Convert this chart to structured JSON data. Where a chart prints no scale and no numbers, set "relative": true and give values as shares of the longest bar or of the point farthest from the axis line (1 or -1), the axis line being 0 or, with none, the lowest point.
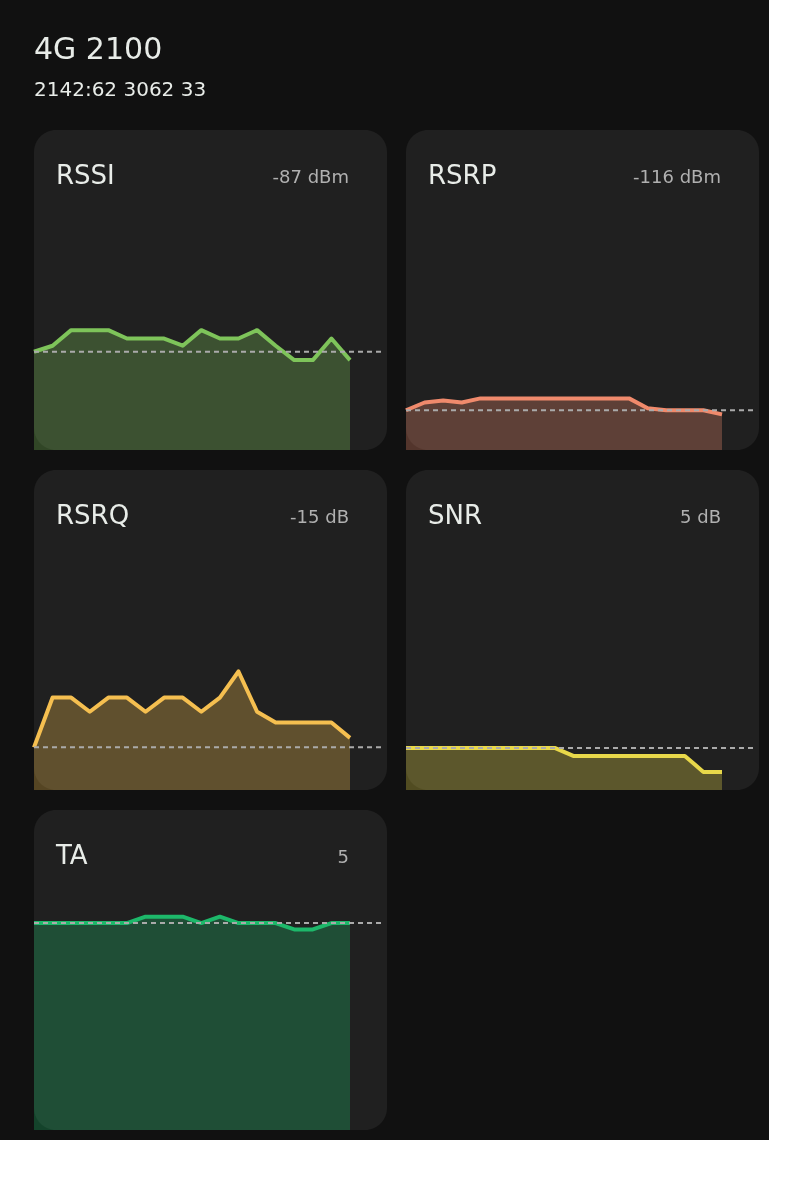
{
  "chart_data": [
    {
      "type": "other",
      "title": "4G 2100",
      "subtitle": "2142:62 3062 33"
    },
    {
      "type": "area",
      "title": "RSSI",
      "annotations": [
        "-87 dBm"
      ],
      "relative": true,
      "categories": [
        null,
        null,
        null,
        null,
        null,
        null,
        null,
        null,
        null,
        null,
        null,
        null,
        null,
        null,
        null,
        null,
        null,
        null
      ],
      "series": [
        {
          "color": "#7ec45a",
          "values": [
            0.82,
            0.87,
            1,
            1,
            1,
            0.93,
            0.93,
            0.93,
            0.87,
            1,
            0.93,
            0.93,
            1,
            0.87,
            0.75,
            0.75,
            0.93,
            0.75
          ]
        }
      ],
      "ref_lines": [
        {
          "axis": "y",
          "value": 0.82,
          "color": "#aaaaaa",
          "line_style": "dashed"
        }
      ]
    },
    {
      "type": "area",
      "title": "RSRP",
      "annotations": [
        "-116 dBm"
      ],
      "relative": true,
      "categories": [
        null,
        null,
        null,
        null,
        null,
        null,
        null,
        null,
        null,
        null,
        null,
        null,
        null,
        null,
        null,
        null,
        null,
        null
      ],
      "series": [
        {
          "color": "#f08a6c",
          "values": [
            0.77,
            0.92,
            0.96,
            0.92,
            1,
            1,
            1,
            1,
            1,
            1,
            1,
            1,
            1,
            0.81,
            0.77,
            0.77,
            0.77,
            0.69
          ]
        }
      ],
      "ref_lines": [
        {
          "axis": "y",
          "value": 0.77,
          "color": "#aaaaaa",
          "line_style": "dashed"
        }
      ]
    },
    {
      "type": "area",
      "title": "RSRQ",
      "annotations": [
        "-15 dB"
      ],
      "relative": true,
      "categories": [
        null,
        null,
        null,
        null,
        null,
        null,
        null,
        null,
        null,
        null,
        null,
        null,
        null,
        null,
        null,
        null,
        null,
        null
      ],
      "series": [
        {
          "color": "#f5bf50",
          "values": [
            0.36,
            0.78,
            0.78,
            0.66,
            0.78,
            0.78,
            0.66,
            0.78,
            0.78,
            0.66,
            0.78,
            1,
            0.66,
            0.57,
            0.57,
            0.57,
            0.57,
            0.44
          ]
        }
      ],
      "ref_lines": [
        {
          "axis": "y",
          "value": 0.36,
          "color": "#aaaaaa",
          "line_style": "dashed"
        }
      ]
    },
    {
      "type": "area",
      "title": "SNR",
      "annotations": [
        "5 dB"
      ],
      "relative": true,
      "categories": [
        null,
        null,
        null,
        null,
        null,
        null,
        null,
        null,
        null,
        null,
        null,
        null,
        null,
        null,
        null,
        null,
        null,
        null
      ],
      "series": [
        {
          "color": "#e8d84a",
          "values": [
            1,
            1,
            1,
            1,
            1,
            1,
            1,
            1,
            1,
            0.81,
            0.81,
            0.81,
            0.81,
            0.81,
            0.81,
            0.81,
            0.43,
            0.43
          ]
        }
      ],
      "ref_lines": [
        {
          "axis": "y",
          "value": 1,
          "color": "#aaaaaa",
          "line_style": "dashed"
        }
      ]
    },
    {
      "type": "area",
      "title": "TA",
      "annotations": [
        "5"
      ],
      "relative": true,
      "categories": [
        null,
        null,
        null,
        null,
        null,
        null,
        null,
        null,
        null,
        null,
        null,
        null,
        null,
        null,
        null,
        null,
        null,
        null
      ],
      "series": [
        {
          "color": "#1db86a",
          "values": [
            0.97,
            0.97,
            0.97,
            0.97,
            0.97,
            0.97,
            1,
            1,
            1,
            0.97,
            1,
            0.97,
            0.97,
            0.97,
            0.94,
            0.94,
            0.97,
            0.97
          ]
        }
      ],
      "ref_lines": [
        {
          "axis": "y",
          "value": 0.97,
          "color": "#aaaaaa",
          "line_style": "dashed"
        }
      ]
    }
  ]
}
